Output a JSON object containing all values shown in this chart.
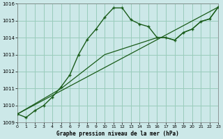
{
  "title": "Graphe pression niveau de la mer (hPa)",
  "bg_color": "#cce8e8",
  "grid_color": "#99ccbb",
  "line_color": "#1a5c1a",
  "x_min": 0,
  "x_max": 23,
  "y_min": 1009,
  "y_max": 1016,
  "curve1_x": [
    0,
    1,
    2,
    3,
    4,
    5,
    6,
    7,
    8,
    9,
    10,
    11,
    12,
    13,
    14,
    15,
    16,
    17,
    18,
    19,
    20,
    21,
    22,
    23
  ],
  "curve1_y": [
    1009.5,
    1009.3,
    1009.7,
    1010.0,
    1010.5,
    1011.1,
    1011.8,
    1013.0,
    1013.9,
    1014.5,
    1015.2,
    1015.75,
    1015.75,
    1015.05,
    1014.8,
    1014.65,
    1014.0,
    1014.0,
    1013.85,
    1014.3,
    1014.5,
    1014.95,
    1015.1,
    1015.8
  ],
  "curve2_x": [
    0,
    23
  ],
  "curve2_y": [
    1009.5,
    1015.8
  ],
  "curve3_x": [
    0,
    5,
    10,
    16,
    17,
    18,
    19,
    20,
    21,
    22,
    23
  ],
  "curve3_y": [
    1009.5,
    1011.0,
    1013.0,
    1014.0,
    1014.0,
    1013.85,
    1014.3,
    1014.5,
    1014.95,
    1015.1,
    1015.8
  ],
  "yticks": [
    1009,
    1010,
    1011,
    1012,
    1013,
    1014,
    1015,
    1016
  ],
  "xticks": [
    0,
    1,
    2,
    3,
    4,
    5,
    6,
    7,
    8,
    9,
    10,
    11,
    12,
    13,
    14,
    15,
    16,
    17,
    18,
    19,
    20,
    21,
    22,
    23
  ]
}
